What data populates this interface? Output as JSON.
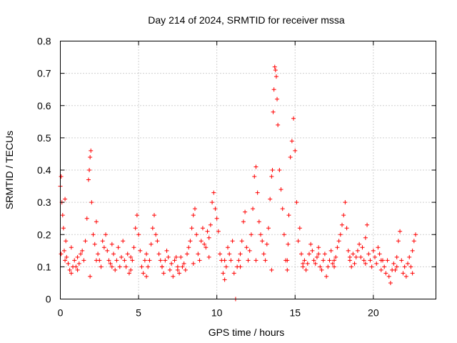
{
  "chart_data": {
    "type": "scatter",
    "title": "Day 214 of 2024, SRMTID for receiver mssa",
    "xlabel": "GPS time / hours",
    "ylabel": "SRMTID / TECUs",
    "xlim": [
      0,
      24
    ],
    "ylim": [
      0,
      0.8
    ],
    "xticks": [
      0,
      5,
      10,
      15,
      20
    ],
    "xtick_labels": [
      "0",
      "5",
      "10",
      "15",
      "20"
    ],
    "yticks": [
      0,
      0.1,
      0.2,
      0.3,
      0.4,
      0.5,
      0.6,
      0.7,
      0.8
    ],
    "ytick_labels": [
      "0",
      "0.1",
      "0.2",
      "0.3",
      "0.4",
      "0.5",
      "0.6",
      "0.7",
      "0.8"
    ],
    "grid": true,
    "marker": "+",
    "color": "#ff0000",
    "series": [
      {
        "name": "SRMTID",
        "x": [
          0.0,
          0.05,
          0.1,
          0.15,
          0.2,
          0.25,
          0.3,
          0.35,
          0.4,
          0.5,
          0.6,
          0.7,
          0.8,
          0.9,
          1.0,
          1.1,
          1.2,
          1.3,
          1.4,
          1.5,
          1.6,
          1.7,
          1.8,
          1.85,
          1.9,
          1.95,
          2.0,
          2.1,
          2.2,
          2.3,
          2.4,
          2.5,
          2.6,
          2.7,
          2.8,
          2.9,
          3.0,
          3.1,
          3.2,
          3.3,
          3.4,
          3.5,
          3.6,
          3.7,
          3.8,
          3.9,
          4.0,
          4.1,
          4.2,
          4.3,
          4.4,
          4.5,
          4.6,
          4.7,
          4.8,
          4.9,
          5.0,
          5.1,
          5.2,
          5.3,
          5.4,
          5.5,
          5.6,
          5.7,
          5.8,
          5.9,
          6.0,
          6.1,
          6.2,
          6.3,
          6.4,
          6.5,
          6.6,
          6.7,
          6.8,
          6.9,
          7.0,
          7.1,
          7.2,
          7.3,
          7.4,
          7.5,
          7.6,
          7.7,
          7.8,
          7.9,
          8.0,
          8.1,
          8.2,
          8.3,
          8.4,
          8.5,
          8.6,
          8.7,
          8.8,
          8.9,
          9.0,
          9.1,
          9.2,
          9.3,
          9.4,
          9.5,
          9.6,
          9.7,
          9.8,
          9.9,
          10.0,
          10.1,
          10.2,
          10.3,
          10.4,
          10.5,
          10.6,
          10.7,
          10.8,
          10.9,
          11.0,
          11.1,
          11.2,
          11.3,
          11.4,
          11.5,
          11.6,
          11.7,
          11.8,
          11.9,
          12.0,
          12.1,
          12.2,
          12.3,
          12.4,
          12.5,
          12.6,
          12.7,
          12.8,
          12.9,
          13.0,
          13.1,
          13.2,
          13.3,
          13.4,
          13.5,
          13.55,
          13.6,
          13.65,
          13.7,
          13.75,
          13.8,
          13.85,
          13.9,
          14.0,
          14.1,
          14.2,
          14.3,
          14.4,
          14.5,
          14.55,
          14.6,
          14.7,
          14.8,
          14.9,
          15.0,
          15.1,
          15.2,
          15.3,
          15.4,
          15.5,
          15.6,
          15.7,
          15.8,
          15.9,
          16.0,
          16.1,
          16.2,
          16.3,
          16.4,
          16.5,
          16.6,
          16.7,
          16.8,
          16.9,
          17.0,
          17.1,
          17.2,
          17.3,
          17.4,
          17.5,
          17.6,
          17.7,
          17.8,
          17.9,
          18.0,
          18.1,
          18.2,
          18.3,
          18.4,
          18.5,
          18.6,
          18.7,
          18.8,
          18.9,
          19.0,
          19.1,
          19.2,
          19.3,
          19.4,
          19.5,
          19.6,
          19.7,
          19.8,
          19.9,
          20.0,
          20.1,
          20.2,
          20.3,
          20.4,
          20.5,
          20.6,
          20.7,
          20.8,
          20.9,
          21.0,
          21.1,
          21.2,
          21.3,
          21.4,
          21.5,
          21.6,
          21.7,
          21.8,
          21.9,
          22.0,
          22.1,
          22.2,
          22.3,
          22.4,
          22.5,
          22.6,
          22.7,
          0.05,
          0.3,
          0.7,
          1.1,
          1.9,
          2.3,
          3.3,
          4.5,
          5.5,
          6.5,
          7.5,
          8.5,
          9.5,
          10.5,
          11.5,
          12.5,
          13.5,
          14.5,
          15.5,
          16.5,
          17.5,
          18.5,
          19.5,
          20.5,
          21.5,
          22.5
        ],
        "y": [
          0.35,
          0.38,
          0.3,
          0.26,
          0.22,
          0.15,
          0.31,
          0.18,
          0.13,
          0.11,
          0.09,
          0.08,
          0.1,
          0.12,
          0.1,
          0.13,
          0.11,
          0.14,
          0.15,
          0.12,
          0.18,
          0.25,
          0.37,
          0.4,
          0.44,
          0.46,
          0.3,
          0.2,
          0.17,
          0.24,
          0.14,
          0.12,
          0.1,
          0.18,
          0.16,
          0.2,
          0.15,
          0.12,
          0.11,
          0.17,
          0.14,
          0.09,
          0.12,
          0.16,
          0.1,
          0.13,
          0.18,
          0.12,
          0.1,
          0.14,
          0.08,
          0.09,
          0.12,
          0.16,
          0.22,
          0.26,
          0.2,
          0.15,
          0.1,
          0.08,
          0.12,
          0.14,
          0.1,
          0.12,
          0.17,
          0.22,
          0.26,
          0.2,
          0.18,
          0.14,
          0.12,
          0.1,
          0.08,
          0.12,
          0.15,
          0.13,
          0.09,
          0.11,
          0.07,
          0.12,
          0.13,
          0.1,
          0.08,
          0.13,
          0.1,
          0.11,
          0.09,
          0.14,
          0.16,
          0.18,
          0.22,
          0.26,
          0.28,
          0.2,
          0.14,
          0.12,
          0.18,
          0.22,
          0.17,
          0.16,
          0.21,
          0.19,
          0.23,
          0.3,
          0.33,
          0.28,
          0.25,
          0.21,
          0.14,
          0.12,
          0.08,
          0.06,
          0.1,
          0.16,
          0.14,
          0.12,
          0.18,
          0.08,
          0.0,
          0.1,
          0.12,
          0.14,
          0.18,
          0.24,
          0.27,
          0.16,
          0.12,
          0.15,
          0.2,
          0.28,
          0.38,
          0.41,
          0.33,
          0.24,
          0.2,
          0.18,
          0.14,
          0.12,
          0.17,
          0.22,
          0.31,
          0.38,
          0.4,
          0.58,
          0.65,
          0.72,
          0.71,
          0.69,
          0.62,
          0.54,
          0.4,
          0.34,
          0.28,
          0.2,
          0.12,
          0.09,
          0.17,
          0.26,
          0.44,
          0.49,
          0.56,
          0.46,
          0.3,
          0.18,
          0.22,
          0.14,
          0.1,
          0.12,
          0.09,
          0.11,
          0.14,
          0.17,
          0.15,
          0.12,
          0.11,
          0.13,
          0.16,
          0.1,
          0.09,
          0.12,
          0.14,
          0.07,
          0.1,
          0.12,
          0.15,
          0.11,
          0.1,
          0.13,
          0.16,
          0.18,
          0.2,
          0.23,
          0.26,
          0.3,
          0.22,
          0.15,
          0.12,
          0.1,
          0.14,
          0.11,
          0.13,
          0.15,
          0.17,
          0.13,
          0.16,
          0.12,
          0.19,
          0.23,
          0.14,
          0.12,
          0.1,
          0.15,
          0.13,
          0.11,
          0.16,
          0.14,
          0.09,
          0.12,
          0.1,
          0.08,
          0.12,
          0.07,
          0.05,
          0.09,
          0.11,
          0.09,
          0.13,
          0.18,
          0.21,
          0.12,
          0.08,
          0.1,
          0.07,
          0.11,
          0.13,
          0.1,
          0.15,
          0.18,
          0.2,
          0.14,
          0.12,
          0.16,
          0.09,
          0.07,
          0.12,
          0.1,
          0.13,
          0.07,
          0.1,
          0.09,
          0.11,
          0.13,
          0.12,
          0.1,
          0.12,
          0.09,
          0.12,
          0.11,
          0.14,
          0.12,
          0.13,
          0.11,
          0.12,
          0.1,
          0.08
        ]
      }
    ]
  }
}
